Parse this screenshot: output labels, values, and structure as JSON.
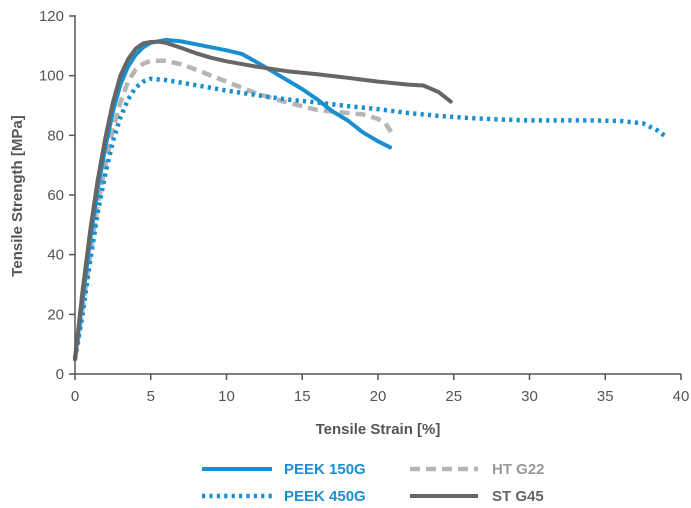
{
  "chart_data": {
    "type": "line",
    "xlabel": "Tensile Strain [%]",
    "ylabel": "Tensile Strength [MPa]",
    "xlim": [
      0,
      40
    ],
    "ylim": [
      0,
      120
    ],
    "xticks": [
      0,
      5,
      10,
      15,
      20,
      25,
      30,
      35,
      40
    ],
    "yticks": [
      0,
      20,
      40,
      60,
      80,
      100,
      120
    ],
    "grid": false,
    "legend_position": "bottom",
    "series": [
      {
        "name": "PEEK 150G",
        "color": "#1a8fd0",
        "style": "solid",
        "points": [
          [
            0,
            5
          ],
          [
            0.5,
            25
          ],
          [
            1,
            45
          ],
          [
            1.5,
            62
          ],
          [
            2,
            76
          ],
          [
            2.5,
            88
          ],
          [
            3,
            97
          ],
          [
            3.5,
            103
          ],
          [
            4,
            107
          ],
          [
            4.5,
            109.5
          ],
          [
            5,
            111
          ],
          [
            6,
            112
          ],
          [
            7,
            111.5
          ],
          [
            8,
            110.5
          ],
          [
            9,
            109.5
          ],
          [
            10,
            108.5
          ],
          [
            11,
            107.3
          ],
          [
            12,
            104.5
          ],
          [
            13,
            101.5
          ],
          [
            14,
            98.5
          ],
          [
            15,
            95.5
          ],
          [
            16,
            92
          ],
          [
            17,
            88
          ],
          [
            18,
            85
          ],
          [
            19,
            81
          ],
          [
            20,
            78
          ],
          [
            20.8,
            76
          ]
        ]
      },
      {
        "name": "PEEK 450G",
        "color": "#1a8fd0",
        "style": "dotted",
        "points": [
          [
            0,
            5
          ],
          [
            0.5,
            20
          ],
          [
            1,
            38
          ],
          [
            1.5,
            54
          ],
          [
            2,
            67
          ],
          [
            2.5,
            78
          ],
          [
            3,
            86
          ],
          [
            3.5,
            92
          ],
          [
            4,
            96
          ],
          [
            4.5,
            98
          ],
          [
            5,
            99
          ],
          [
            6,
            98.5
          ],
          [
            8,
            96.8
          ],
          [
            10,
            95
          ],
          [
            12,
            93.5
          ],
          [
            14,
            92
          ],
          [
            16,
            91
          ],
          [
            18,
            89.8
          ],
          [
            20,
            88.8
          ],
          [
            22,
            87.5
          ],
          [
            24,
            86.5
          ],
          [
            26,
            85.8
          ],
          [
            28,
            85.3
          ],
          [
            30,
            85
          ],
          [
            32,
            85
          ],
          [
            34,
            85
          ],
          [
            36,
            84.8
          ],
          [
            37.5,
            84
          ],
          [
            38.5,
            81.5
          ],
          [
            39,
            79.5
          ]
        ]
      },
      {
        "name": "HT G22",
        "color": "#b5b5b5",
        "style": "dashed",
        "points": [
          [
            0,
            5
          ],
          [
            0.5,
            22
          ],
          [
            1,
            40
          ],
          [
            1.5,
            57
          ],
          [
            2,
            70
          ],
          [
            2.5,
            82
          ],
          [
            3,
            91
          ],
          [
            3.5,
            98
          ],
          [
            4,
            102
          ],
          [
            4.5,
            104
          ],
          [
            5,
            105
          ],
          [
            6,
            105
          ],
          [
            7,
            103.8
          ],
          [
            8,
            102
          ],
          [
            9,
            100
          ],
          [
            10,
            98
          ],
          [
            12,
            94
          ],
          [
            14,
            91
          ],
          [
            16,
            88.5
          ],
          [
            18,
            87.5
          ],
          [
            19,
            87
          ],
          [
            20,
            85.5
          ],
          [
            20.5,
            84
          ],
          [
            21,
            80
          ]
        ]
      },
      {
        "name": "ST G45",
        "color": "#666666",
        "style": "solid",
        "points": [
          [
            0,
            5
          ],
          [
            0.5,
            28
          ],
          [
            1,
            48
          ],
          [
            1.5,
            65
          ],
          [
            2,
            79
          ],
          [
            2.5,
            91
          ],
          [
            3,
            100
          ],
          [
            3.5,
            105.5
          ],
          [
            4,
            109
          ],
          [
            4.5,
            110.8
          ],
          [
            5,
            111.3
          ],
          [
            5.5,
            111.4
          ],
          [
            6,
            111
          ],
          [
            7,
            109.3
          ],
          [
            8,
            107.5
          ],
          [
            9,
            106
          ],
          [
            10,
            104.8
          ],
          [
            12,
            103
          ],
          [
            14,
            101.5
          ],
          [
            16,
            100.5
          ],
          [
            18,
            99.3
          ],
          [
            20,
            98
          ],
          [
            22,
            97
          ],
          [
            23,
            96.7
          ],
          [
            24,
            94.5
          ],
          [
            24.8,
            91.3
          ]
        ]
      }
    ]
  }
}
